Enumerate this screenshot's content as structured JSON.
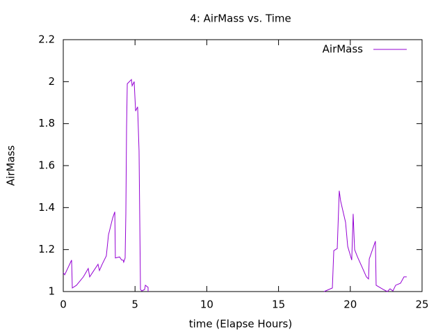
{
  "chart_data": {
    "type": "line",
    "title": "4: AirMass vs. Time",
    "xlabel": "time (Elapse Hours)",
    "ylabel": "AirMass",
    "xlim": [
      0,
      25
    ],
    "xticks": [
      0,
      5,
      10,
      15,
      20,
      25
    ],
    "ylim": [
      1,
      2.2
    ],
    "yticks": [
      1,
      1.2,
      1.4,
      1.6,
      1.8,
      2,
      2.2
    ],
    "legend": "top-right",
    "series": [
      {
        "name": "AirMass",
        "color": "#9400d3",
        "x": [
          0,
          0.1,
          0.58,
          0.63,
          0.92,
          1.4,
          1.74,
          1.84,
          2.13,
          2.42,
          2.52,
          2.71,
          3.0,
          3.15,
          3.44,
          3.59,
          3.63,
          3.92,
          4.07,
          4.17,
          4.21,
          4.31,
          4.36,
          4.41,
          4.46,
          4.75,
          4.8,
          4.94,
          5.04,
          5.18,
          5.28,
          5.38,
          5.47,
          5.67,
          5.72,
          5.91,
          5.91,
          null,
          18.17,
          18.75,
          18.85,
          19.09,
          19.23,
          19.33,
          19.67,
          19.82,
          20.1,
          20.2,
          20.3,
          20.5,
          20.83,
          21.12,
          21.27,
          21.32,
          21.75,
          21.8,
          22.29,
          22.58,
          22.77,
          22.97,
          23.16,
          23.5,
          23.74,
          23.93
        ],
        "values": [
          1.09,
          1.08,
          1.15,
          1.017,
          1.03,
          1.07,
          1.11,
          1.07,
          1.1,
          1.13,
          1.1,
          1.13,
          1.17,
          1.27,
          1.35,
          1.38,
          1.16,
          1.165,
          1.15,
          1.15,
          1.14,
          1.16,
          1.37,
          1.78,
          1.99,
          2.01,
          1.98,
          2.0,
          1.86,
          1.88,
          1.67,
          1.01,
          1.003,
          1.01,
          1.03,
          1.02,
          1.0,
          null,
          1.0,
          1.017,
          1.195,
          1.205,
          1.48,
          1.43,
          1.33,
          1.215,
          1.15,
          1.37,
          1.2,
          1.165,
          1.115,
          1.07,
          1.06,
          1.155,
          1.24,
          1.03,
          1.01,
          1.0,
          1.013,
          1.003,
          1.03,
          1.04,
          1.07,
          1.07
        ]
      }
    ]
  }
}
